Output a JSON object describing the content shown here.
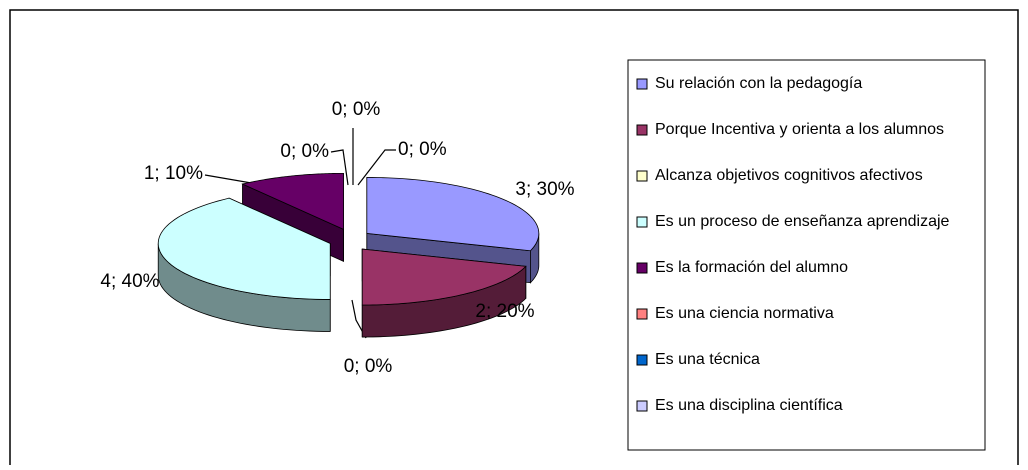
{
  "chart_data": {
    "type": "pie3d",
    "categories": [
      "Su relación con la pedagogía",
      "Porque Incentiva y orienta a los alumnos",
      "Alcanza objetivos cognitivos afectivos",
      "Es un proceso de enseñanza aprendizaje",
      "Es la formación del alumno",
      "Es una ciencia normativa",
      "Es una técnica",
      "Es una disciplina científica"
    ],
    "values": [
      3,
      2,
      0,
      4,
      1,
      0,
      0,
      0
    ],
    "value_labels": [
      "3; 30%",
      "2; 20%",
      "0; 0%",
      "4; 40%",
      "1; 10%",
      "0; 0%",
      "0; 0%",
      "0; 0%"
    ],
    "colors": [
      "#9999ff",
      "#993366",
      "#ffffcc",
      "#ccffff",
      "#660066",
      "#ff8080",
      "#0066cc",
      "#ccccff"
    ],
    "legend": "right"
  }
}
